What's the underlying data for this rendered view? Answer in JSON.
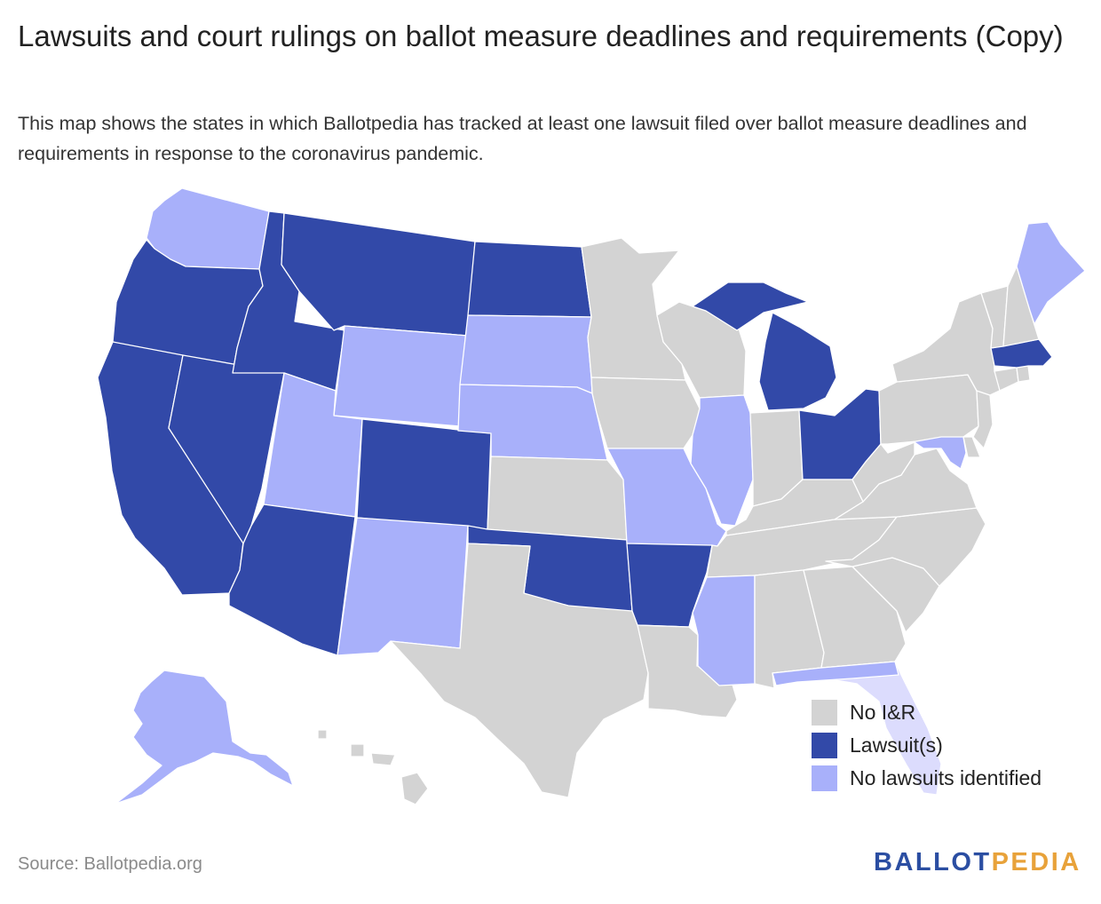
{
  "title": "Lawsuits and court rulings on ballot measure deadlines and requirements (Copy)",
  "subtitle": "This map shows the states in which Ballotpedia has tracked at least one lawsuit filed over ballot measure deadlines and requirements in response to the coronavirus pandemic.",
  "legend": [
    {
      "label": "No I&R",
      "color": "#d3d3d3"
    },
    {
      "label": "Lawsuit(s)",
      "color": "#3249a8"
    },
    {
      "label": "No lawsuits identified",
      "color": "#a8b0fa"
    }
  ],
  "source": "Source: Ballotpedia.org",
  "logo": {
    "part1": "BALLOT",
    "part2": "PEDIA"
  },
  "colors": {
    "no_ir": "#d3d3d3",
    "lawsuit": "#3249a8",
    "none": "#a8b0fa",
    "florida": "#dcdcfd"
  },
  "states": [
    {
      "id": "WA",
      "status": "none"
    },
    {
      "id": "OR",
      "status": "lawsuit"
    },
    {
      "id": "CA",
      "status": "lawsuit"
    },
    {
      "id": "NV",
      "status": "lawsuit"
    },
    {
      "id": "ID",
      "status": "lawsuit"
    },
    {
      "id": "MT",
      "status": "lawsuit"
    },
    {
      "id": "WY",
      "status": "none"
    },
    {
      "id": "UT",
      "status": "none"
    },
    {
      "id": "AZ",
      "status": "lawsuit"
    },
    {
      "id": "CO",
      "status": "lawsuit"
    },
    {
      "id": "NM",
      "status": "none"
    },
    {
      "id": "ND",
      "status": "lawsuit"
    },
    {
      "id": "SD",
      "status": "none"
    },
    {
      "id": "NE",
      "status": "none"
    },
    {
      "id": "KS",
      "status": "no_ir"
    },
    {
      "id": "OK",
      "status": "lawsuit"
    },
    {
      "id": "TX",
      "status": "no_ir"
    },
    {
      "id": "MN",
      "status": "no_ir"
    },
    {
      "id": "IA",
      "status": "no_ir"
    },
    {
      "id": "MO",
      "status": "none"
    },
    {
      "id": "AR",
      "status": "lawsuit"
    },
    {
      "id": "LA",
      "status": "no_ir"
    },
    {
      "id": "WI",
      "status": "no_ir"
    },
    {
      "id": "IL",
      "status": "none"
    },
    {
      "id": "MS",
      "status": "none"
    },
    {
      "id": "MI",
      "status": "lawsuit"
    },
    {
      "id": "IN",
      "status": "no_ir"
    },
    {
      "id": "OH",
      "status": "lawsuit"
    },
    {
      "id": "KY",
      "status": "no_ir"
    },
    {
      "id": "TN",
      "status": "no_ir"
    },
    {
      "id": "AL",
      "status": "no_ir"
    },
    {
      "id": "GA",
      "status": "no_ir"
    },
    {
      "id": "FL",
      "status": "florida"
    },
    {
      "id": "SC",
      "status": "no_ir"
    },
    {
      "id": "NC",
      "status": "no_ir"
    },
    {
      "id": "VA",
      "status": "no_ir"
    },
    {
      "id": "WV",
      "status": "no_ir"
    },
    {
      "id": "PA",
      "status": "no_ir"
    },
    {
      "id": "NY",
      "status": "no_ir"
    },
    {
      "id": "MD",
      "status": "none"
    },
    {
      "id": "DE",
      "status": "no_ir"
    },
    {
      "id": "NJ",
      "status": "no_ir"
    },
    {
      "id": "CT",
      "status": "no_ir"
    },
    {
      "id": "RI",
      "status": "no_ir"
    },
    {
      "id": "MA",
      "status": "lawsuit"
    },
    {
      "id": "VT",
      "status": "no_ir"
    },
    {
      "id": "NH",
      "status": "no_ir"
    },
    {
      "id": "ME",
      "status": "none"
    },
    {
      "id": "AK",
      "status": "none"
    },
    {
      "id": "HI",
      "status": "no_ir"
    }
  ]
}
